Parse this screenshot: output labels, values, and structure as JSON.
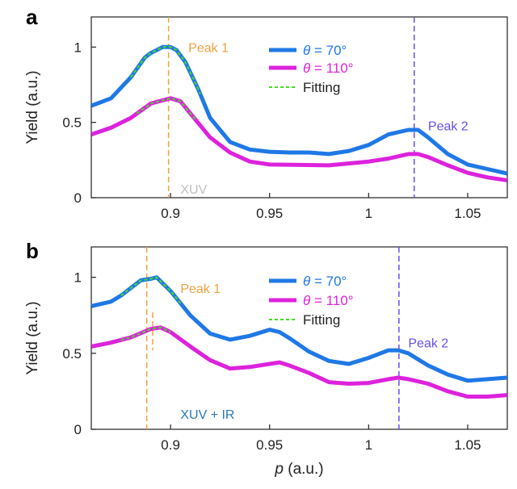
{
  "chart_data": [
    {
      "panel": "a",
      "type": "line",
      "xlabel": "",
      "ylabel": "Yield (a.u.)",
      "xlim": [
        0.86,
        1.07
      ],
      "ylim": [
        0,
        1.2
      ],
      "xticks": [
        0.9,
        0.95,
        1,
        1.05
      ],
      "xtick_labels": [
        "0.9",
        "0.95",
        "1",
        "1.05"
      ],
      "yticks": [
        0,
        0.5,
        1
      ],
      "ytick_labels": [
        "0",
        "0.5",
        "1"
      ],
      "legend_placement": "top-center",
      "series": [
        {
          "name": "θ = 70°",
          "color": "#1f78e6",
          "x": [
            0.86,
            0.87,
            0.88,
            0.887,
            0.89,
            0.896,
            0.9,
            0.903,
            0.9075,
            0.914,
            0.92,
            0.93,
            0.94,
            0.95,
            0.96,
            0.97,
            0.98,
            0.99,
            1.0,
            1.01,
            1.02,
            1.025,
            1.03,
            1.04,
            1.05,
            1.06,
            1.07
          ],
          "y": [
            0.61,
            0.66,
            0.8,
            0.93,
            0.96,
            1.0,
            1.0,
            0.98,
            0.9,
            0.72,
            0.53,
            0.37,
            0.32,
            0.305,
            0.3,
            0.3,
            0.29,
            0.31,
            0.35,
            0.42,
            0.45,
            0.45,
            0.4,
            0.29,
            0.22,
            0.19,
            0.16
          ]
        },
        {
          "name": "θ = 110°",
          "color": "#dd22dd",
          "x": [
            0.86,
            0.87,
            0.88,
            0.89,
            0.9,
            0.905,
            0.91,
            0.92,
            0.93,
            0.94,
            0.95,
            0.98,
            1.0,
            1.01,
            1.02,
            1.025,
            1.03,
            1.04,
            1.05,
            1.06,
            1.07
          ],
          "y": [
            0.42,
            0.465,
            0.53,
            0.625,
            0.66,
            0.64,
            0.56,
            0.4,
            0.3,
            0.24,
            0.22,
            0.215,
            0.24,
            0.26,
            0.29,
            0.29,
            0.27,
            0.215,
            0.165,
            0.135,
            0.115
          ]
        },
        {
          "name": "Fitting",
          "color": "#44dd22",
          "style": "dashed",
          "fit_ranges": [
            [
              0.88,
              0.915
            ],
            [
              0.883,
              0.913
            ]
          ]
        }
      ],
      "vlines": [
        {
          "x": 0.899,
          "color": "#f0a040",
          "label": "Peak 1"
        },
        {
          "x": 1.023,
          "color": "#6a4ee8",
          "label": "Peak 2"
        }
      ],
      "annotations": [
        {
          "text": "Peak 1",
          "x": 0.909,
          "y": 1.0,
          "color": "#f0a040"
        },
        {
          "text": "Peak 2",
          "x": 1.03,
          "y": 0.48,
          "color": "#6a4ee8"
        },
        {
          "text": "XUV",
          "x": 0.905,
          "y": 0.06,
          "color": "#c0c0c0"
        }
      ]
    },
    {
      "panel": "b",
      "type": "line",
      "xlabel": "p (a.u.)",
      "ylabel": "Yield (a.u.)",
      "xlim": [
        0.86,
        1.07
      ],
      "ylim": [
        0,
        1.2
      ],
      "xticks": [
        0.9,
        0.95,
        1,
        1.05
      ],
      "xtick_labels": [
        "0.9",
        "0.95",
        "1",
        "1.05"
      ],
      "yticks": [
        0,
        0.5,
        1
      ],
      "ytick_labels": [
        "0",
        "0.5",
        "1"
      ],
      "legend_placement": "top-center",
      "series": [
        {
          "name": "θ = 70°",
          "color": "#1f78e6",
          "x": [
            0.86,
            0.87,
            0.875,
            0.88,
            0.885,
            0.89,
            0.893,
            0.9,
            0.905,
            0.91,
            0.92,
            0.93,
            0.94,
            0.95,
            0.955,
            0.96,
            0.97,
            0.98,
            0.99,
            1.0,
            1.01,
            1.015,
            1.02,
            1.03,
            1.04,
            1.05,
            1.06,
            1.07
          ],
          "y": [
            0.81,
            0.84,
            0.88,
            0.93,
            0.98,
            0.99,
            1.0,
            0.91,
            0.83,
            0.75,
            0.63,
            0.59,
            0.615,
            0.655,
            0.64,
            0.6,
            0.51,
            0.45,
            0.43,
            0.47,
            0.52,
            0.52,
            0.5,
            0.42,
            0.36,
            0.32,
            0.33,
            0.34
          ]
        },
        {
          "name": "θ = 110°",
          "color": "#dd22dd",
          "x": [
            0.86,
            0.87,
            0.88,
            0.89,
            0.895,
            0.9,
            0.91,
            0.92,
            0.93,
            0.94,
            0.95,
            0.955,
            0.96,
            0.97,
            0.98,
            0.99,
            1.0,
            1.01,
            1.015,
            1.02,
            1.03,
            1.04,
            1.05,
            1.06,
            1.07
          ],
          "y": [
            0.545,
            0.57,
            0.605,
            0.66,
            0.67,
            0.64,
            0.545,
            0.455,
            0.4,
            0.41,
            0.43,
            0.44,
            0.42,
            0.37,
            0.31,
            0.3,
            0.305,
            0.33,
            0.34,
            0.33,
            0.3,
            0.25,
            0.215,
            0.215,
            0.225
          ]
        },
        {
          "name": "Fitting",
          "color": "#44dd22",
          "style": "dashed",
          "fit_ranges": [
            [
              0.875,
              0.905
            ],
            [
              0.875,
              0.9
            ]
          ]
        }
      ],
      "vlines": [
        {
          "x": 0.888,
          "color": "#f0a040",
          "label": "Peak 1"
        },
        {
          "x": 1.0153,
          "color": "#6a4ee8",
          "label": "Peak 2"
        }
      ],
      "short_marks": [
        {
          "x": 0.891,
          "y_range": [
            0.52,
            0.77
          ],
          "color": "#f0a040"
        }
      ],
      "annotations": [
        {
          "text": "Peak 1",
          "x": 0.905,
          "y": 0.93,
          "color": "#f0a040"
        },
        {
          "text": "Peak 2",
          "x": 1.02,
          "y": 0.57,
          "color": "#6a4ee8"
        },
        {
          "text": "XUV + IR",
          "x": 0.905,
          "y": 0.1,
          "color": "#2a7ab8"
        }
      ]
    }
  ]
}
